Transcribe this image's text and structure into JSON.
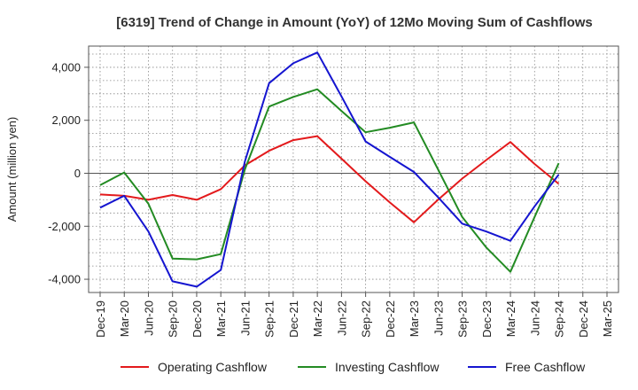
{
  "chart_data": {
    "type": "line",
    "title": "[6319]  Trend of Change in Amount (YoY) of 12Mo Moving Sum of Cashflows",
    "xlabel": "",
    "ylabel": "Amount (million yen)",
    "ylim": [
      -4500,
      4800
    ],
    "yticks": [
      -4000,
      -2000,
      0,
      2000,
      4000
    ],
    "ytick_labels": [
      "-4,000",
      "-2,000",
      "0",
      "2,000",
      "4,000"
    ],
    "categories": [
      "Dec-19",
      "Mar-20",
      "Jun-20",
      "Sep-20",
      "Dec-20",
      "Mar-21",
      "Jun-21",
      "Sep-21",
      "Dec-21",
      "Mar-22",
      "Jun-22",
      "Sep-22",
      "Dec-22",
      "Mar-23",
      "Jun-23",
      "Sep-23",
      "Dec-23",
      "Mar-24",
      "Jun-24",
      "Sep-24",
      "Dec-24",
      "Mar-25"
    ],
    "grid": true,
    "legend_position": "bottom",
    "series": [
      {
        "name": "Operating Cashflow",
        "color": "#e31a1c",
        "values": [
          -800,
          -850,
          -1000,
          -820,
          -1000,
          -600,
          300,
          850,
          1250,
          1400,
          550,
          -300,
          -1100,
          -1850,
          -1000,
          -200,
          500,
          1180,
          350,
          -400,
          null,
          null
        ]
      },
      {
        "name": "Investing Cashflow",
        "color": "#238b23",
        "values": [
          -450,
          30,
          -1150,
          -3220,
          -3250,
          -3050,
          150,
          2520,
          2880,
          3170,
          2350,
          1550,
          1720,
          1920,
          150,
          -1650,
          -2800,
          -3720,
          -1650,
          380,
          null,
          null
        ]
      },
      {
        "name": "Free Cashflow",
        "color": "#1515d0",
        "values": [
          -1300,
          -850,
          -2200,
          -4080,
          -4280,
          -3650,
          450,
          3400,
          4150,
          4560,
          2900,
          1200,
          620,
          50,
          -900,
          -1900,
          -2200,
          -2550,
          -1250,
          -50,
          null,
          null
        ]
      }
    ]
  }
}
